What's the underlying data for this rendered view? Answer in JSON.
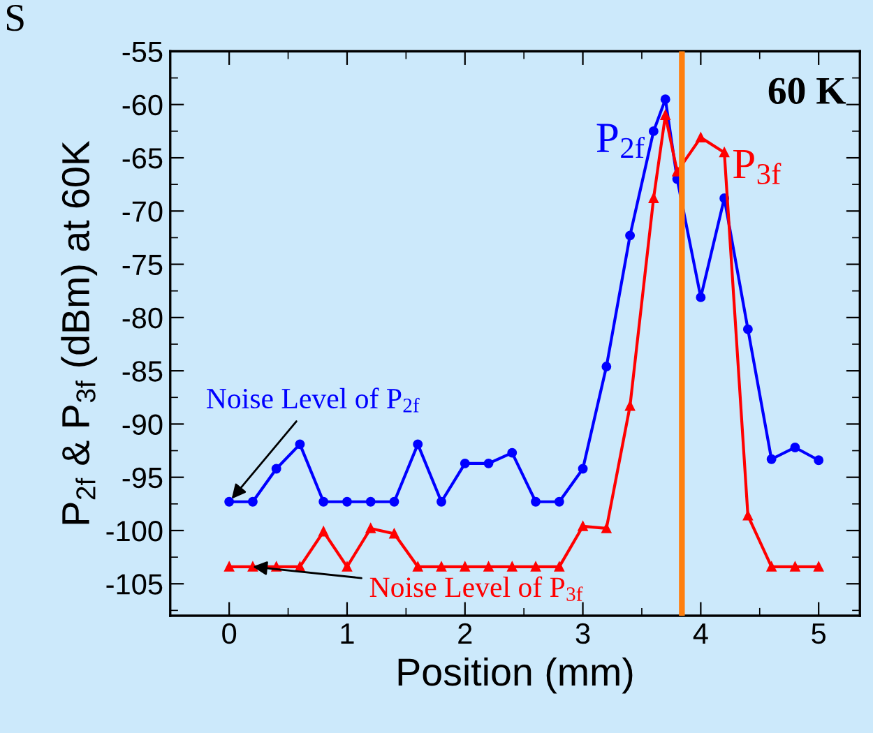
{
  "chart_data": {
    "type": "line",
    "xlabel": "Position (mm)",
    "ylabel": "P$_{2f}$ & P$_{3f}$ (dBm) at 60K",
    "xlim": [
      -0.5,
      5.35
    ],
    "xticks": [
      0,
      1,
      2,
      3,
      4,
      5
    ],
    "ylim": [
      -108,
      -55
    ],
    "yticks": [
      -105,
      -100,
      -95,
      -90,
      -85,
      -80,
      -75,
      -70,
      -65,
      -60,
      -55
    ],
    "grid": false,
    "line_style": "solid",
    "series": [
      {
        "name": "P$_{2f}$",
        "color": "#0000ff",
        "marker": "circle",
        "x": [
          0,
          0.2,
          0.4,
          0.6,
          0.8,
          1.0,
          1.2,
          1.4,
          1.6,
          1.8,
          2.0,
          2.2,
          2.4,
          2.6,
          2.8,
          3.0,
          3.2,
          3.4,
          3.6,
          3.7,
          3.8,
          4.0,
          4.2,
          4.4,
          4.6,
          4.8,
          5.0
        ],
        "values": [
          -97.3,
          -97.3,
          -94.2,
          -91.9,
          -97.3,
          -97.3,
          -97.3,
          -97.3,
          -91.9,
          -97.3,
          -93.7,
          -93.7,
          -92.7,
          -97.3,
          -97.3,
          -94.2,
          -84.6,
          -72.3,
          -62.5,
          -59.5,
          -67.0,
          -78.1,
          -68.8,
          -81.1,
          -93.3,
          -92.2,
          -93.4
        ]
      },
      {
        "name": "P$_{3f}$",
        "color": "#ff0000",
        "marker": "triangle",
        "x": [
          0,
          0.2,
          0.4,
          0.6,
          0.8,
          1.0,
          1.2,
          1.4,
          1.6,
          1.8,
          2.0,
          2.2,
          2.4,
          2.6,
          2.8,
          3.0,
          3.2,
          3.4,
          3.6,
          3.7,
          3.8,
          4.0,
          4.2,
          4.4,
          4.6,
          4.8,
          5.0
        ],
        "values": [
          -103.4,
          -103.4,
          -103.4,
          -103.4,
          -100.1,
          -103.4,
          -99.8,
          -100.3,
          -103.4,
          -103.4,
          -103.4,
          -103.4,
          -103.4,
          -103.4,
          -103.4,
          -99.6,
          -99.8,
          -88.3,
          -68.8,
          -61.0,
          -66.3,
          -63.1,
          -64.5,
          -98.6,
          -103.4,
          -103.4,
          -103.4
        ]
      }
    ],
    "ref_lines": [
      {
        "axis": "x",
        "value": 3.84,
        "color": "#ff7f0e"
      }
    ],
    "annotations": [
      "S",
      "60 K",
      {
        "text": "Noise Level of P$_{2f}$",
        "x": 0,
        "y": -97.3
      },
      {
        "text": "Noise Level of P$_{3f}$",
        "x": 0.2,
        "y": -103.4
      }
    ]
  }
}
